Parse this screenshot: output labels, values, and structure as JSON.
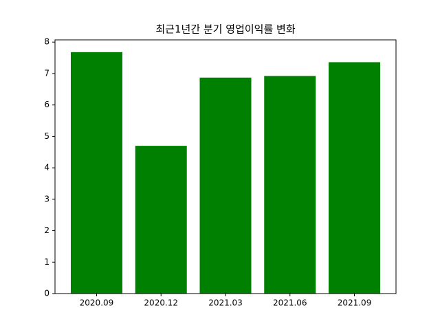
{
  "chart_data": {
    "type": "bar",
    "title": "최근1년간 분기 영업이익률 변화",
    "categories": [
      "2020.09",
      "2020.12",
      "2021.03",
      "2021.06",
      "2021.09"
    ],
    "values": [
      7.68,
      4.7,
      6.87,
      6.92,
      7.36
    ],
    "color": "#008000",
    "ylim": [
      0,
      8.07
    ],
    "yticks": [
      0,
      1,
      2,
      3,
      4,
      5,
      6,
      7,
      8
    ],
    "grid": false
  }
}
